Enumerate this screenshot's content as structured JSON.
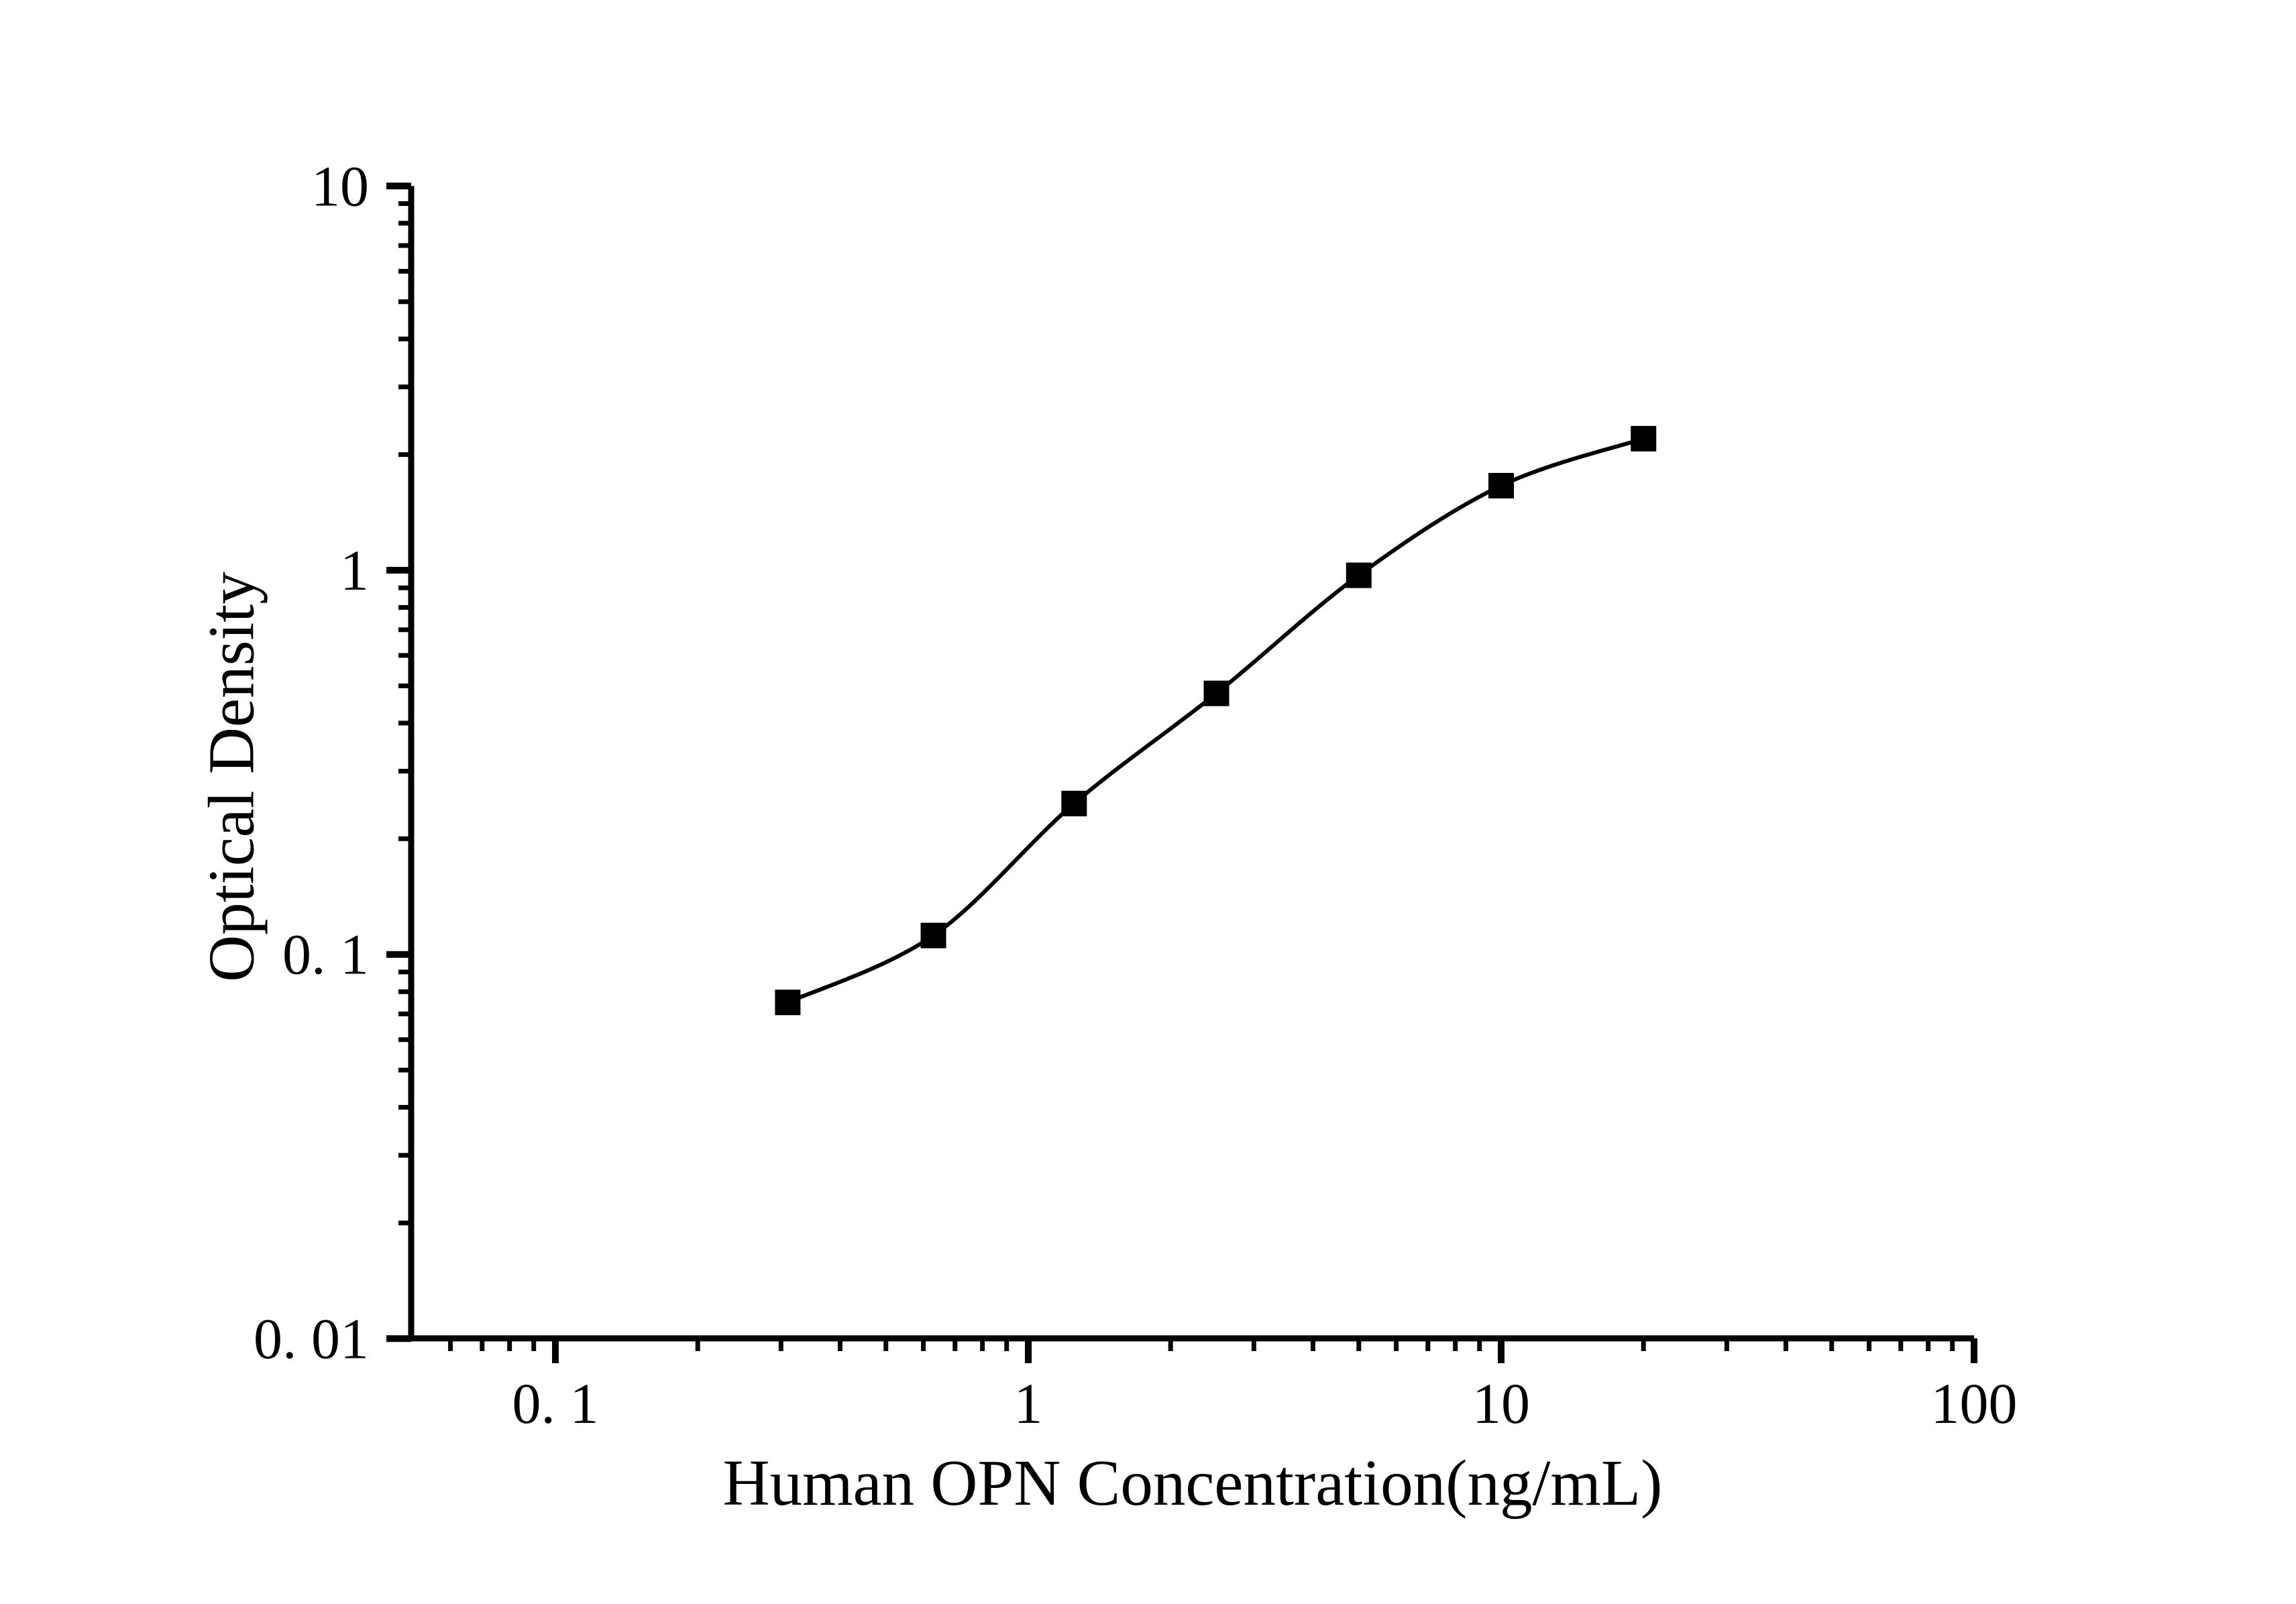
{
  "chart_data": {
    "type": "scatter",
    "title": "",
    "xlabel": "Human OPN Concentration(ng/mL)",
    "ylabel": "Optical Density",
    "xscale": "log",
    "yscale": "log",
    "xlim": [
      0.044,
      100
    ],
    "ylim": [
      0.01,
      10
    ],
    "grid": false,
    "legend": "none",
    "marker": "filled-square",
    "marker_color": "#000000",
    "curve_color": "#000000",
    "axis_color": "#000000",
    "curve_style": "smooth sigmoid fit through points",
    "x": [
      0.31,
      0.63,
      1.25,
      2.5,
      5,
      10,
      20
    ],
    "y": [
      0.075,
      0.112,
      0.247,
      0.478,
      0.97,
      1.66,
      2.2
    ],
    "x_tick_values": [
      0.1,
      1,
      10,
      100
    ],
    "x_tick_labels": [
      "0. 1",
      "1",
      "10",
      "100"
    ],
    "y_tick_values": [
      10,
      1,
      0.1,
      0.01
    ],
    "y_tick_labels": [
      "10",
      "1",
      "0. 1",
      "0. 01"
    ],
    "x_minor_tick_values": [
      0.06,
      0.07,
      0.08,
      0.09,
      0.2,
      0.3,
      0.4,
      0.5,
      0.6,
      0.7,
      0.8,
      0.9,
      2,
      3,
      4,
      5,
      6,
      7,
      8,
      9,
      20,
      30,
      40,
      50,
      60,
      70,
      80,
      90
    ],
    "y_minor_tick_values": [
      0.02,
      0.03,
      0.04,
      0.05,
      0.06,
      0.07,
      0.08,
      0.09,
      0.2,
      0.3,
      0.4,
      0.5,
      0.6,
      0.7,
      0.8,
      0.9,
      2,
      3,
      4,
      5,
      6,
      7,
      8,
      9
    ]
  }
}
